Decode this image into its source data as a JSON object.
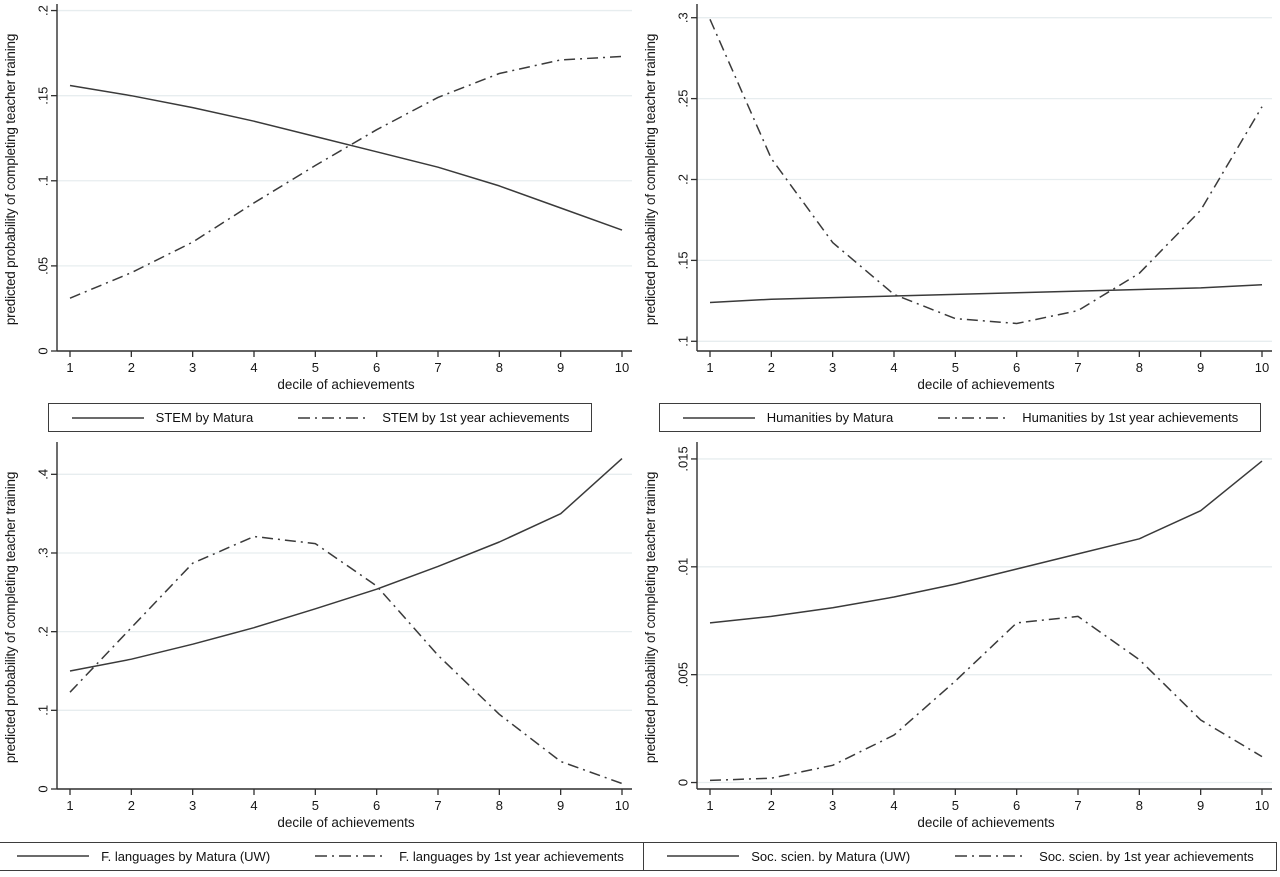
{
  "colors": {
    "background": "#ffffff",
    "line": "#3a3a3a",
    "grid": "#e7edef",
    "axis": "#2f2f2f",
    "text": "#161616",
    "legend_border": "#3d3d3d"
  },
  "chart_data": [
    {
      "type": "line",
      "panel": "top-left",
      "title": "",
      "xlabel": "decile of achievements",
      "ylabel": "predicted probability of completing teacher training",
      "x": [
        1,
        2,
        3,
        4,
        5,
        6,
        7,
        8,
        9,
        10
      ],
      "xtick_labels": [
        "1",
        "2",
        "3",
        "4",
        "5",
        "6",
        "7",
        "8",
        "9",
        "10"
      ],
      "ylim": [
        0,
        0.2015
      ],
      "yticks": [
        0,
        0.05,
        0.1,
        0.15,
        0.2
      ],
      "ytick_labels": [
        "0",
        ".05",
        ".1",
        ".15",
        ".2"
      ],
      "grid": true,
      "legend_position": "bottom",
      "series": [
        {
          "name": "STEM by Matura",
          "style": "solid",
          "values": [
            0.156,
            0.15,
            0.143,
            0.135,
            0.126,
            0.117,
            0.108,
            0.097,
            0.084,
            0.071
          ]
        },
        {
          "name": "STEM by 1st year achievements",
          "style": "dashdot",
          "values": [
            0.031,
            0.046,
            0.064,
            0.087,
            0.109,
            0.13,
            0.149,
            0.163,
            0.171,
            0.173
          ]
        }
      ]
    },
    {
      "type": "line",
      "panel": "top-right",
      "title": "",
      "xlabel": "decile of achievements",
      "ylabel": "predicted probability of completing teacher training",
      "x": [
        1,
        2,
        3,
        4,
        5,
        6,
        7,
        8,
        9,
        10
      ],
      "xtick_labels": [
        "1",
        "2",
        "3",
        "4",
        "5",
        "6",
        "7",
        "8",
        "9",
        "10"
      ],
      "ylim": [
        0.094,
        0.306
      ],
      "yticks": [
        0.1,
        0.15,
        0.2,
        0.25,
        0.3
      ],
      "ytick_labels": [
        ".1",
        ".15",
        ".2",
        ".25",
        ".3"
      ],
      "grid": true,
      "legend_position": "bottom",
      "series": [
        {
          "name": "Humanities by Matura",
          "style": "solid",
          "values": [
            0.124,
            0.126,
            0.127,
            0.128,
            0.129,
            0.13,
            0.131,
            0.132,
            0.133,
            0.135
          ]
        },
        {
          "name": "Humanities by 1st year achievements",
          "style": "dashdot",
          "values": [
            0.299,
            0.213,
            0.161,
            0.129,
            0.114,
            0.111,
            0.119,
            0.142,
            0.181,
            0.245
          ]
        }
      ]
    },
    {
      "type": "line",
      "panel": "bottom-left",
      "title": "",
      "xlabel": "decile of achievements",
      "ylabel": "predicted probability of completing teacher training",
      "x": [
        1,
        2,
        3,
        4,
        5,
        6,
        7,
        8,
        9,
        10
      ],
      "xtick_labels": [
        "1",
        "2",
        "3",
        "4",
        "5",
        "6",
        "7",
        "8",
        "9",
        "10"
      ],
      "ylim": [
        0,
        0.436
      ],
      "yticks": [
        0,
        0.1,
        0.2,
        0.3,
        0.4
      ],
      "ytick_labels": [
        "0",
        ".1",
        ".2",
        ".3",
        ".4"
      ],
      "grid": true,
      "legend_position": "bottom",
      "series": [
        {
          "name": "F. languages by Matura (UW)",
          "style": "solid",
          "values": [
            0.15,
            0.165,
            0.184,
            0.205,
            0.229,
            0.254,
            0.283,
            0.314,
            0.35,
            0.42
          ]
        },
        {
          "name": "F. languages by 1st year achievements",
          "style": "dashdot",
          "values": [
            0.123,
            0.205,
            0.287,
            0.321,
            0.312,
            0.258,
            0.17,
            0.095,
            0.035,
            0.007
          ]
        }
      ]
    },
    {
      "type": "line",
      "panel": "bottom-right",
      "title": "",
      "xlabel": "decile of achievements",
      "ylabel": "predicted probability of completing teacher training",
      "x": [
        1,
        2,
        3,
        4,
        5,
        6,
        7,
        8,
        9,
        10
      ],
      "xtick_labels": [
        "1",
        "2",
        "3",
        "4",
        "5",
        "6",
        "7",
        "8",
        "9",
        "10"
      ],
      "ylim": [
        -0.0003,
        0.0156
      ],
      "yticks": [
        0,
        0.005,
        0.01,
        0.015
      ],
      "ytick_labels": [
        "0",
        ".005",
        ".01",
        ".015"
      ],
      "grid": true,
      "legend_position": "bottom",
      "series": [
        {
          "name": "Soc. scien. by Matura (UW)",
          "style": "solid",
          "values": [
            0.0074,
            0.0077,
            0.0081,
            0.0086,
            0.0092,
            0.0099,
            0.0106,
            0.0113,
            0.0126,
            0.0149
          ]
        },
        {
          "name": "Soc. scien. by 1st year achievements",
          "style": "dashdot",
          "values": [
            0.0001,
            0.0002,
            0.0008,
            0.0022,
            0.0047,
            0.0074,
            0.0077,
            0.0057,
            0.0029,
            0.0012
          ]
        }
      ]
    }
  ]
}
